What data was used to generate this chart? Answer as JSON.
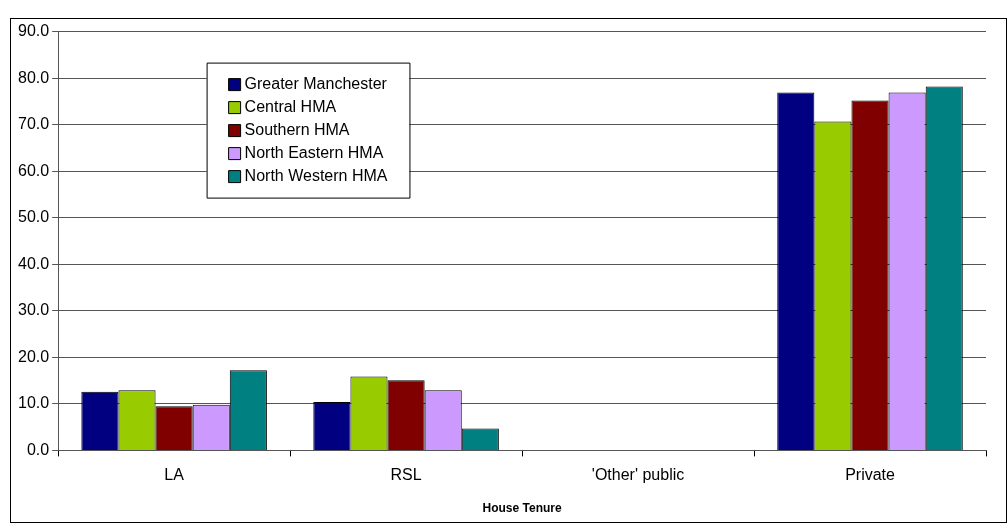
{
  "chart_data": {
    "type": "bar",
    "xlabel": "House Tenure",
    "categories": [
      "LA",
      "RSL",
      "'Other' public",
      "Private"
    ],
    "series": [
      {
        "name": "Greater Manchester",
        "color": "#000080",
        "values": [
          12.6,
          10.4,
          0,
          76.9
        ]
      },
      {
        "name": "Central HMA",
        "color": "#99cc00",
        "values": [
          12.9,
          15.9,
          0,
          70.7
        ]
      },
      {
        "name": "Southern HMA",
        "color": "#800000",
        "values": [
          9.5,
          15.1,
          0,
          75.2
        ]
      },
      {
        "name": "North Eastern HMA",
        "color": "#cc99ff",
        "values": [
          9.8,
          12.9,
          0,
          76.9
        ]
      },
      {
        "name": "North Western HMA",
        "color": "#008080",
        "values": [
          17.2,
          4.7,
          0,
          78.2
        ]
      }
    ],
    "ylim": [
      0,
      90
    ],
    "yticks": [
      {
        "value": 0,
        "label": "0.0"
      },
      {
        "value": 10,
        "label": "10.0"
      },
      {
        "value": 20,
        "label": "20.0"
      },
      {
        "value": 30,
        "label": "30.0"
      },
      {
        "value": 40,
        "label": "40.0"
      },
      {
        "value": 50,
        "label": "50.0"
      },
      {
        "value": 60,
        "label": "60.0"
      },
      {
        "value": 70,
        "label": "70.0"
      },
      {
        "value": 80,
        "label": "80.0"
      },
      {
        "value": 90,
        "label": "90.0"
      }
    ],
    "grid": "y",
    "legend": "top left"
  }
}
